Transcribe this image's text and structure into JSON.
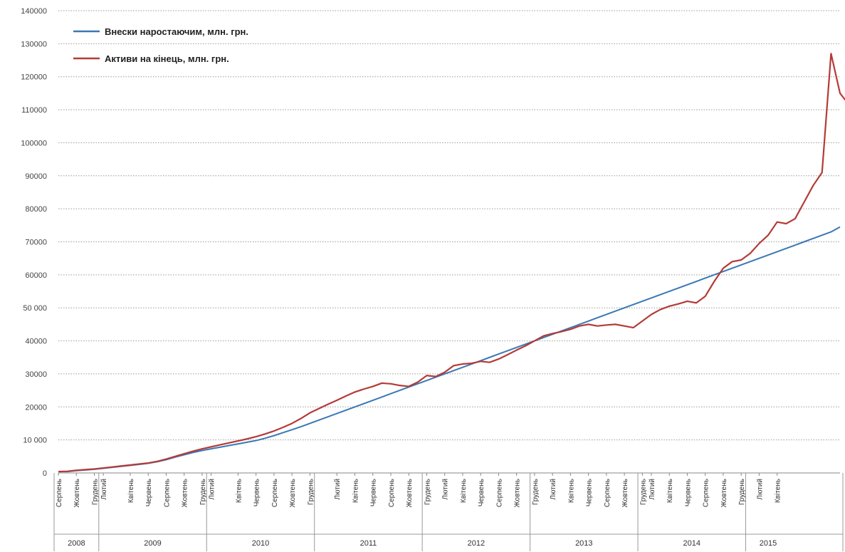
{
  "chart_data": {
    "type": "line",
    "title": "",
    "xlabel": "",
    "ylabel": "",
    "ylim": [
      0,
      140000
    ],
    "yticks": [
      0,
      10000,
      20000,
      30000,
      40000,
      50000,
      60000,
      70000,
      80000,
      90000,
      100000,
      110000,
      120000,
      130000,
      140000
    ],
    "ytick_labels": [
      "0",
      "10 000",
      "20000",
      "30000",
      "40000",
      "50 000",
      "60000",
      "70000",
      "80000",
      "90000",
      "100000",
      "110000",
      "120000",
      "130000",
      "140000"
    ],
    "grid": true,
    "legend_position": "top-left",
    "x_month_labels": [
      {
        "i": 0,
        "label": "Серпень"
      },
      {
        "i": 2,
        "label": "Жовтень"
      },
      {
        "i": 4,
        "label": "Грудень"
      },
      {
        "i": 5,
        "label": "Лютий"
      },
      {
        "i": 8,
        "label": "Квітень"
      },
      {
        "i": 10,
        "label": "Червень"
      },
      {
        "i": 12,
        "label": "Серпень"
      },
      {
        "i": 14,
        "label": "Жовтень"
      },
      {
        "i": 16,
        "label": "Грудень"
      },
      {
        "i": 17,
        "label": "Лютий"
      },
      {
        "i": 20,
        "label": "Квітень"
      },
      {
        "i": 22,
        "label": "Червень"
      },
      {
        "i": 24,
        "label": "Серпень"
      },
      {
        "i": 26,
        "label": "Жовтень"
      },
      {
        "i": 28,
        "label": "Грудень"
      },
      {
        "i": 31,
        "label": "Лютий"
      },
      {
        "i": 33,
        "label": "Квітень"
      },
      {
        "i": 35,
        "label": "Червень"
      },
      {
        "i": 37,
        "label": "Серпень"
      },
      {
        "i": 39,
        "label": "Жовтень"
      },
      {
        "i": 41,
        "label": "Грудень"
      },
      {
        "i": 43,
        "label": "Лютий"
      },
      {
        "i": 45,
        "label": "Квітень"
      },
      {
        "i": 47,
        "label": "Червень"
      },
      {
        "i": 49,
        "label": "Серпень"
      },
      {
        "i": 51,
        "label": "Жовтень"
      },
      {
        "i": 53,
        "label": "Грудень"
      },
      {
        "i": 55,
        "label": "Лютий"
      },
      {
        "i": 57,
        "label": "Квітень"
      },
      {
        "i": 59,
        "label": "Червень"
      },
      {
        "i": 61,
        "label": "Серпень"
      },
      {
        "i": 63,
        "label": "Жовтень"
      },
      {
        "i": 65,
        "label": "Грудень"
      },
      {
        "i": 66,
        "label": "Лютий"
      },
      {
        "i": 68,
        "label": "Квітень"
      },
      {
        "i": 70,
        "label": "Червень"
      },
      {
        "i": 72,
        "label": "Серпень"
      },
      {
        "i": 74,
        "label": "Жовтень"
      },
      {
        "i": 76,
        "label": "Грудень"
      },
      {
        "i": 78,
        "label": "Лютий"
      },
      {
        "i": 80,
        "label": "Квітень"
      }
    ],
    "x_year_groups": [
      {
        "label": "2008",
        "start": 0,
        "end": 4
      },
      {
        "label": "2009",
        "start": 5,
        "end": 16
      },
      {
        "label": "2010",
        "start": 17,
        "end": 28
      },
      {
        "label": "2011",
        "start": 29,
        "end": 40
      },
      {
        "label": "2012",
        "start": 41,
        "end": 52
      },
      {
        "label": "2013",
        "start": 53,
        "end": 64
      },
      {
        "label": "2014",
        "start": 65,
        "end": 76
      },
      {
        "label": "2015",
        "start": 77,
        "end": 81
      }
    ],
    "series": [
      {
        "name": "Внески наростаючим, млн. грн.",
        "color": "#3a78b5",
        "values": [
          400,
          400,
          700,
          900,
          1100,
          1400,
          1700,
          2000,
          2300,
          2600,
          2900,
          3400,
          4000,
          4800,
          5500,
          6200,
          6800,
          7300,
          7800,
          8300,
          8800,
          9300,
          9800,
          10500,
          11300,
          12200,
          13100,
          14000,
          15000,
          16000,
          17000,
          18000,
          19000,
          20000,
          21000,
          22000,
          23000,
          24000,
          25000,
          26000,
          27000,
          28000,
          29000,
          30000,
          31000,
          32000,
          33000,
          34000,
          35000,
          36000,
          37000,
          38000,
          39000,
          40000,
          41000,
          42000,
          43000,
          44000,
          45000,
          46000,
          47000,
          48000,
          49000,
          50000,
          51000,
          52000,
          53000,
          54000,
          55000,
          56000,
          57000,
          58000,
          59000,
          60000,
          61000,
          62000,
          63000,
          64000,
          65000,
          66000,
          67000,
          68000,
          69000,
          70000,
          71000,
          72000,
          73000,
          74500
        ]
      },
      {
        "name": "Активи на кінець, млн. грн.",
        "color": "#b33b38",
        "values": [
          400,
          500,
          800,
          1000,
          1200,
          1500,
          1800,
          2100,
          2400,
          2700,
          3000,
          3500,
          4200,
          5000,
          5800,
          6600,
          7300,
          7900,
          8500,
          9100,
          9700,
          10300,
          11000,
          11800,
          12700,
          13800,
          15000,
          16500,
          18200,
          19500,
          20800,
          22000,
          23300,
          24500,
          25400,
          26200,
          27200,
          27000,
          26500,
          26200,
          27500,
          29500,
          29200,
          30500,
          32500,
          33000,
          33200,
          33800,
          33500,
          34500,
          35800,
          37200,
          38500,
          40000,
          41500,
          42200,
          42800,
          43500,
          44500,
          45000,
          44500,
          44800,
          45000,
          44500,
          44000,
          46000,
          48000,
          49500,
          50500,
          51200,
          52000,
          51500,
          53500,
          58000,
          62000,
          64000,
          64500,
          66500,
          69500,
          72000,
          76000,
          75500,
          77000,
          82000,
          87000,
          91000,
          127000,
          115000,
          111500
        ]
      }
    ]
  }
}
